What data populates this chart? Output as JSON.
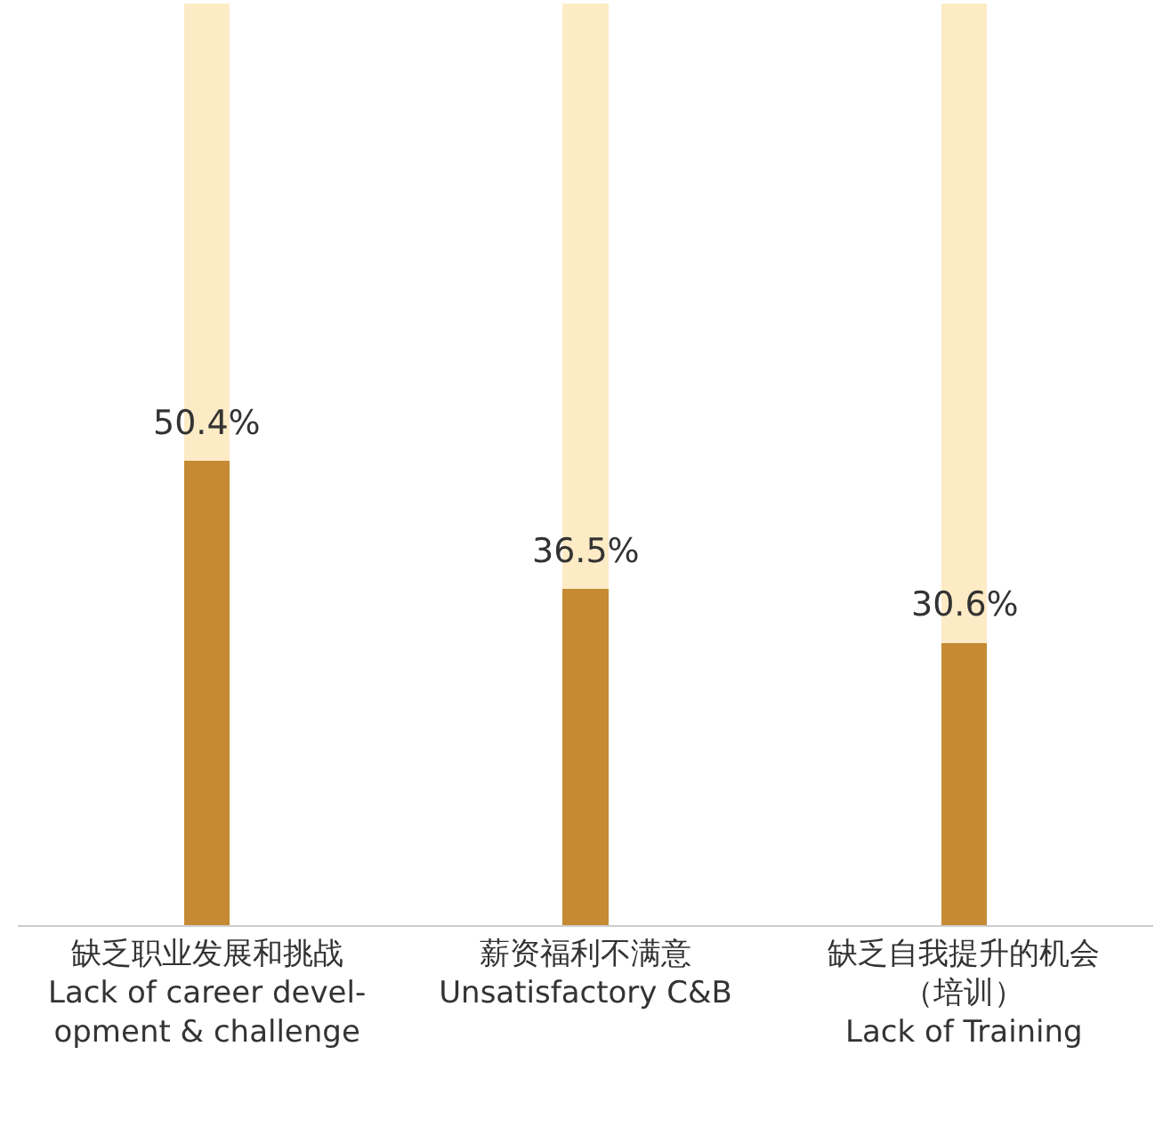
{
  "chart_data": {
    "type": "bar",
    "categories": [
      "缺乏职业发展和挑战\nLack of career devel-\nopment & challenge",
      "薪资福利不满意\nUnsatisfactory C&B",
      "缺乏自我提升的机会（培训）\nLack of Training"
    ],
    "stacked": true,
    "series": [
      {
        "color": "#c58a33",
        "values": [
          50.4,
          36.5,
          30.6
        ],
        "value_labels": [
          "50.4%",
          "36.5%",
          "30.6%"
        ]
      },
      {
        "color": "#fdebc6",
        "values": [
          49.6,
          63.5,
          69.4
        ]
      }
    ],
    "ylim": [
      0,
      100
    ],
    "tick_labels": "x"
  }
}
